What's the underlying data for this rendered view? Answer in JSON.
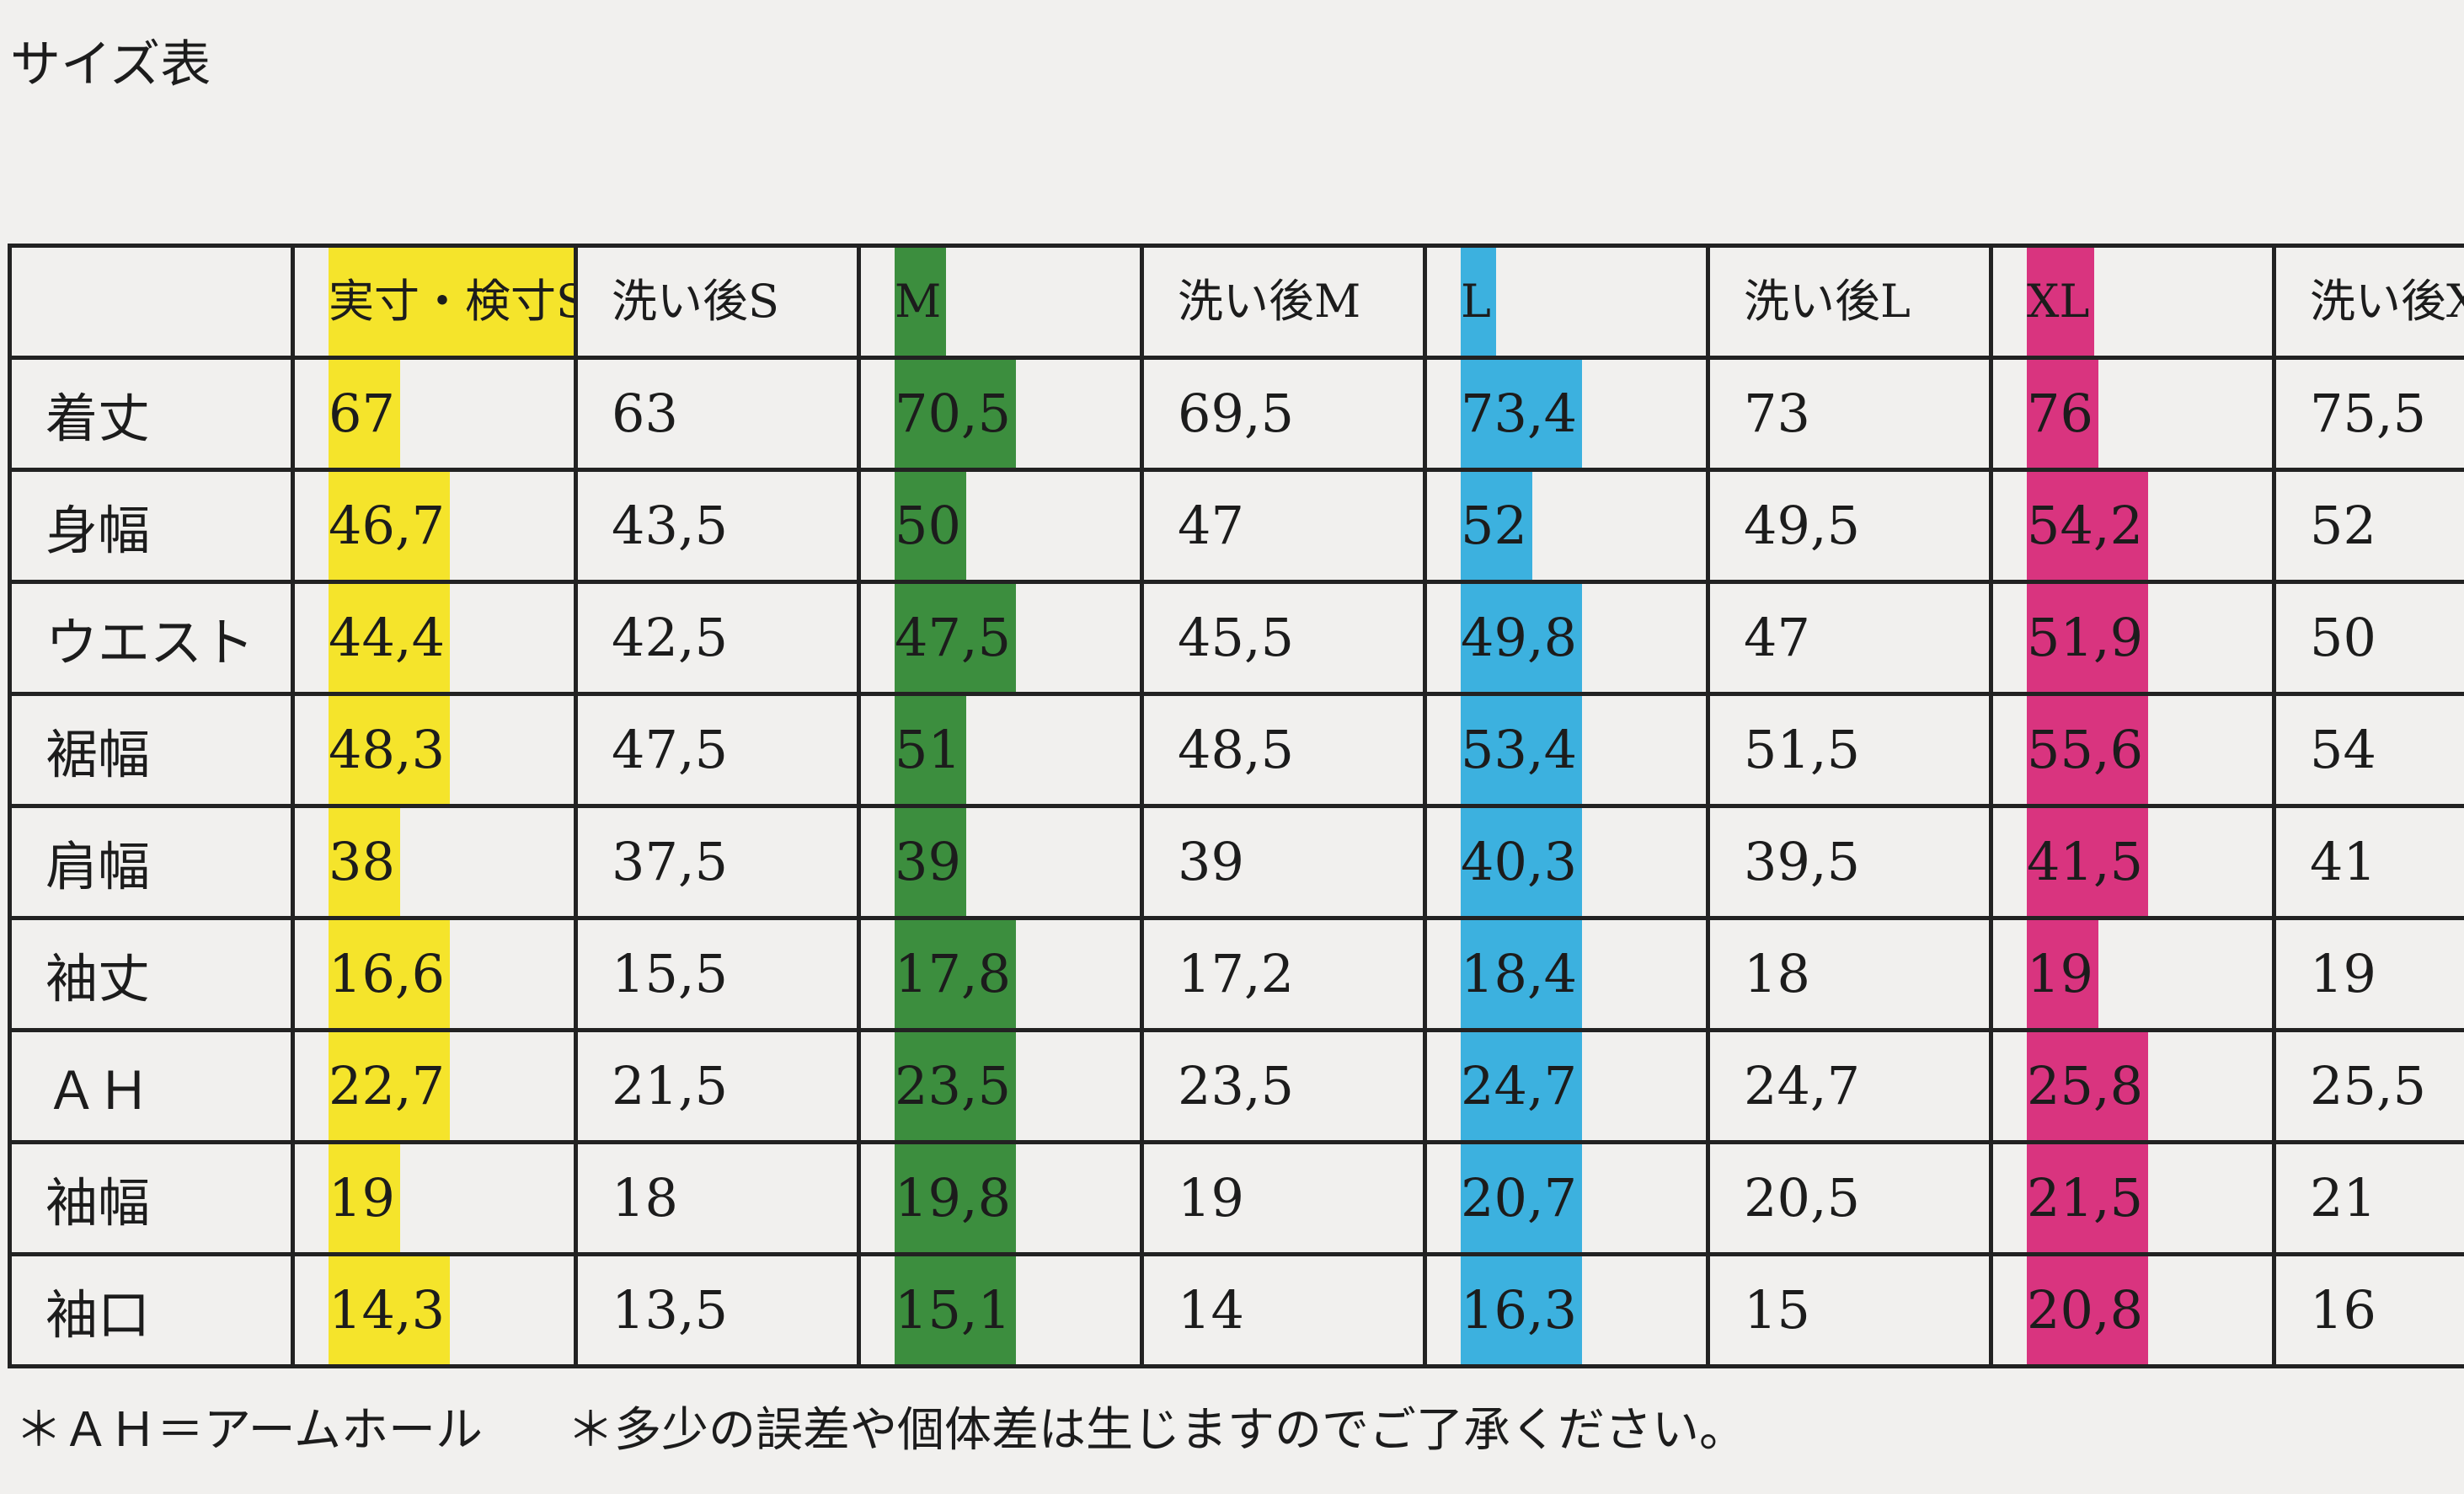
{
  "title": "サイズ表",
  "table": {
    "headers": [
      "実寸・検寸S",
      "洗い後S",
      "M",
      "洗い後M",
      "L",
      "洗い後L",
      "XL",
      "洗い後X"
    ],
    "rows": [
      {
        "label": "着丈",
        "cells": [
          "67",
          "63",
          "70,5",
          "69,5",
          "73,4",
          "73",
          "76",
          "75,5"
        ]
      },
      {
        "label": "身幅",
        "cells": [
          "46,7",
          "43,5",
          "50",
          "47",
          "52",
          "49,5",
          "54,2",
          "52"
        ]
      },
      {
        "label": "ウエスト",
        "cells": [
          "44,4",
          "42,5",
          "47,5",
          "45,5",
          "49,8",
          "47",
          "51,9",
          "50"
        ]
      },
      {
        "label": "裾幅",
        "cells": [
          "48,3",
          "47,5",
          "51",
          "48,5",
          "53,4",
          "51,5",
          "55,6",
          "54"
        ]
      },
      {
        "label": "肩幅",
        "cells": [
          "38",
          "37,5",
          "39",
          "39",
          "40,3",
          "39,5",
          "41,5",
          "41"
        ]
      },
      {
        "label": "袖丈",
        "cells": [
          "16,6",
          "15,5",
          "17,8",
          "17,2",
          "18,4",
          "18",
          "19",
          "19"
        ]
      },
      {
        "label": "ＡＨ",
        "cells": [
          "22,7",
          "21,5",
          "23,5",
          "23,5",
          "24,7",
          "24,7",
          "25,8",
          "25,5"
        ]
      },
      {
        "label": "袖幅",
        "cells": [
          "19",
          "18",
          "19,8",
          "19",
          "20,7",
          "20,5",
          "21,5",
          "21"
        ]
      },
      {
        "label": "袖口",
        "cells": [
          "14,3",
          "13,5",
          "15,1",
          "14",
          "16,3",
          "15",
          "20,8",
          "16"
        ]
      }
    ]
  },
  "notes": [
    "＊ＡＨ＝アームホール",
    "＊多少の誤差や個体差は生じますのでご了承ください。"
  ]
}
